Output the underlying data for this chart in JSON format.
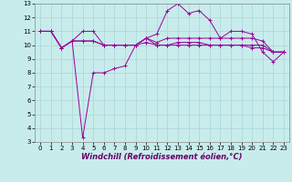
{
  "xlabel": "Windchill (Refroidissement éolien,°C)",
  "background_color": "#c8ecec",
  "grid_color": "#b0d8d8",
  "line_color": "#990099",
  "xlim": [
    -0.5,
    23.5
  ],
  "ylim": [
    3,
    13
  ],
  "yticks": [
    3,
    4,
    5,
    6,
    7,
    8,
    9,
    10,
    11,
    12,
    13
  ],
  "xticks": [
    0,
    1,
    2,
    3,
    4,
    5,
    6,
    7,
    8,
    9,
    10,
    11,
    12,
    13,
    14,
    15,
    16,
    17,
    18,
    19,
    20,
    21,
    22,
    23
  ],
  "line1": [
    11.0,
    11.0,
    9.8,
    10.3,
    11.0,
    11.0,
    10.0,
    10.0,
    10.0,
    10.0,
    10.5,
    10.0,
    10.0,
    10.0,
    10.0,
    10.0,
    10.0,
    10.0,
    10.0,
    10.0,
    10.0,
    10.0,
    9.5,
    9.5
  ],
  "line2": [
    11.0,
    11.0,
    9.8,
    10.3,
    3.3,
    8.0,
    8.0,
    8.3,
    8.5,
    10.0,
    10.5,
    10.8,
    12.5,
    13.0,
    12.3,
    12.5,
    11.8,
    10.5,
    11.0,
    11.0,
    10.8,
    9.5,
    8.8,
    9.5
  ],
  "line3": [
    11.0,
    11.0,
    9.8,
    10.3,
    10.3,
    10.3,
    10.0,
    10.0,
    10.0,
    10.0,
    10.5,
    10.2,
    10.5,
    10.5,
    10.5,
    10.5,
    10.5,
    10.5,
    10.5,
    10.5,
    10.5,
    10.3,
    9.5,
    9.5
  ],
  "line4": [
    11.0,
    11.0,
    9.8,
    10.3,
    10.3,
    10.3,
    10.0,
    10.0,
    10.0,
    10.0,
    10.2,
    10.0,
    10.0,
    10.2,
    10.2,
    10.2,
    10.0,
    10.0,
    10.0,
    10.0,
    9.8,
    9.8,
    9.5,
    9.5
  ],
  "ylabel_fontsize": 5,
  "xlabel_fontsize": 6,
  "tick_fontsize": 5
}
